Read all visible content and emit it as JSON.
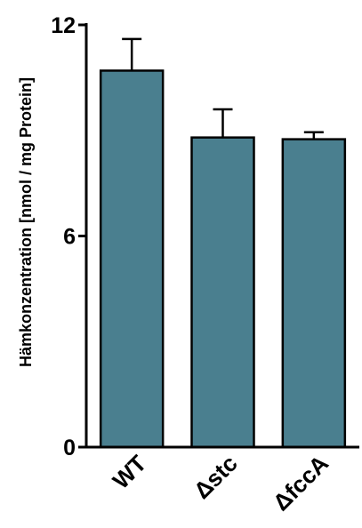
{
  "chart_data": {
    "type": "bar",
    "categories": [
      "WT",
      "Δstc",
      "ΔfccA"
    ],
    "values": [
      10.7,
      8.8,
      8.75
    ],
    "errors": [
      0.9,
      0.8,
      0.2
    ],
    "ylabel": "Hämkonzentration [nmol / mg Protein]",
    "xlabel": "",
    "title": "",
    "ylim": [
      0,
      12
    ],
    "yticks": [
      0,
      6,
      12
    ],
    "yticks_labels": [
      "0",
      "6",
      "12"
    ],
    "bar_color": "#4a7f8f",
    "edge_color": "#000000",
    "grid": false
  }
}
